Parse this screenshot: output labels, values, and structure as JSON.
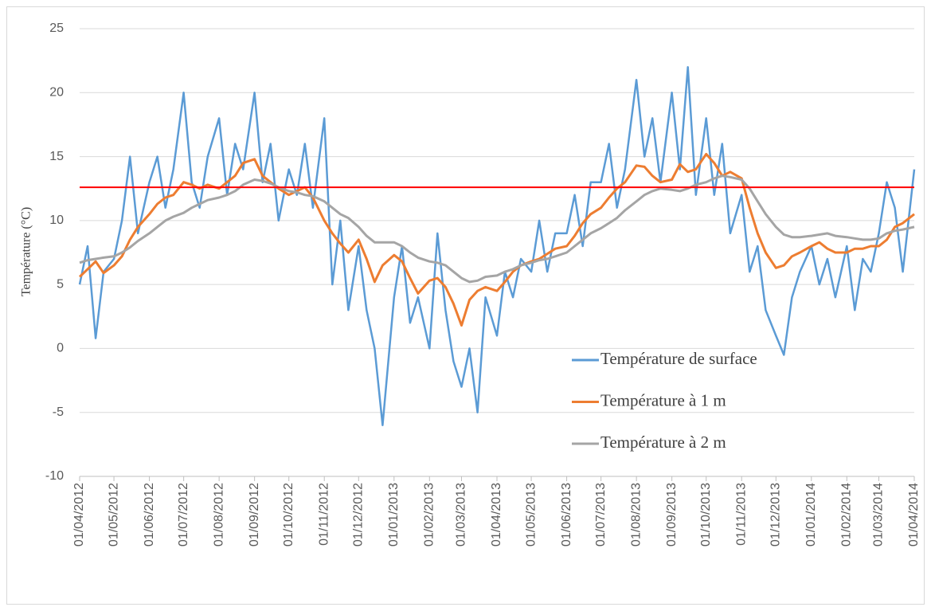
{
  "chart_data": {
    "type": "line",
    "ylabel": "Température (°C)",
    "x": [
      "01/04/2012",
      "08/04/2012",
      "15/04/2012",
      "22/04/2012",
      "01/05/2012",
      "08/05/2012",
      "15/05/2012",
      "22/05/2012",
      "01/06/2012",
      "08/06/2012",
      "15/06/2012",
      "22/06/2012",
      "01/07/2012",
      "08/07/2012",
      "15/07/2012",
      "22/07/2012",
      "01/08/2012",
      "08/08/2012",
      "15/08/2012",
      "22/08/2012",
      "01/09/2012",
      "08/09/2012",
      "15/09/2012",
      "22/09/2012",
      "01/10/2012",
      "08/10/2012",
      "15/10/2012",
      "22/10/2012",
      "01/11/2012",
      "08/11/2012",
      "15/11/2012",
      "22/11/2012",
      "01/12/2012",
      "08/12/2012",
      "15/12/2012",
      "22/12/2012",
      "01/01/2013",
      "08/01/2013",
      "15/01/2013",
      "22/01/2013",
      "01/02/2013",
      "08/02/2013",
      "15/02/2013",
      "22/02/2013",
      "01/03/2013",
      "08/03/2013",
      "15/03/2013",
      "22/03/2013",
      "01/04/2013",
      "08/04/2013",
      "15/04/2013",
      "22/04/2013",
      "01/05/2013",
      "08/05/2013",
      "15/05/2013",
      "22/05/2013",
      "01/06/2013",
      "08/06/2013",
      "15/06/2013",
      "22/06/2013",
      "01/07/2013",
      "08/07/2013",
      "15/07/2013",
      "22/07/2013",
      "01/08/2013",
      "08/08/2013",
      "15/08/2013",
      "22/08/2013",
      "01/09/2013",
      "08/09/2013",
      "15/09/2013",
      "22/09/2013",
      "01/10/2013",
      "08/10/2013",
      "15/10/2013",
      "22/10/2013",
      "01/11/2013",
      "08/11/2013",
      "15/11/2013",
      "22/11/2013",
      "01/12/2013",
      "08/12/2013",
      "15/12/2013",
      "22/12/2013",
      "01/01/2014",
      "08/01/2014",
      "15/01/2014",
      "22/01/2014",
      "01/02/2014",
      "08/02/2014",
      "15/02/2014",
      "22/02/2014",
      "01/03/2014",
      "08/03/2014",
      "15/03/2014",
      "22/03/2014",
      "01/04/2014"
    ],
    "series": [
      {
        "name": "Température de surface",
        "color": "#5b9bd5",
        "values": [
          5,
          8,
          0.8,
          6,
          7,
          10,
          15,
          9,
          13,
          15,
          11,
          14,
          20,
          13,
          11,
          15,
          18,
          12,
          16,
          14,
          20,
          13,
          16,
          10,
          14,
          12,
          16,
          11,
          18,
          5,
          10,
          3,
          8,
          3,
          0,
          -6,
          4,
          8,
          2,
          4,
          0,
          9,
          3,
          -1,
          -3,
          0,
          -5,
          4,
          1,
          6,
          4,
          7,
          6,
          10,
          6,
          9,
          9,
          12,
          8,
          13,
          13,
          16,
          11,
          14,
          21,
          15,
          18,
          13,
          20,
          14,
          22,
          12,
          18,
          12,
          16,
          9,
          12,
          6,
          8,
          3,
          1,
          -0.5,
          4,
          6,
          8,
          5,
          7,
          4,
          8,
          3,
          7,
          6,
          9,
          13,
          11,
          6,
          14
        ]
      },
      {
        "name": "Température à 1 m",
        "color": "#ed7d31",
        "values": [
          5.6,
          6.2,
          6.8,
          5.9,
          6.5,
          7.2,
          8.5,
          9.5,
          10.5,
          11.3,
          11.8,
          12,
          13,
          12.8,
          12.5,
          12.8,
          12.5,
          13,
          13.5,
          14.5,
          14.8,
          13.5,
          13,
          12.5,
          12,
          12.3,
          12.6,
          11.8,
          10,
          9,
          8.2,
          7.5,
          8.5,
          7,
          5.2,
          6.5,
          7.3,
          6.8,
          5.5,
          4.3,
          5.3,
          5.5,
          4.8,
          3.5,
          1.8,
          3.8,
          4.5,
          4.8,
          4.5,
          5.2,
          6,
          6.5,
          6.8,
          7,
          7.4,
          7.8,
          8,
          8.8,
          9.8,
          10.5,
          11,
          11.8,
          12.5,
          13,
          14.3,
          14.2,
          13.5,
          13,
          13.2,
          14.4,
          13.8,
          14,
          15.2,
          14.5,
          13.5,
          13.8,
          13.3,
          11,
          9,
          7.5,
          6.3,
          6.5,
          7.2,
          7.5,
          8,
          8.3,
          7.8,
          7.5,
          7.5,
          7.8,
          7.8,
          8,
          8,
          8.5,
          9.5,
          9.8,
          10.5
        ]
      },
      {
        "name": "Température à 2 m",
        "color": "#a5a5a5",
        "values": [
          6.7,
          6.9,
          7,
          7.1,
          7.2,
          7.5,
          7.9,
          8.4,
          9,
          9.5,
          10,
          10.3,
          10.6,
          11,
          11.3,
          11.6,
          11.8,
          12,
          12.3,
          12.8,
          13.2,
          13.1,
          12.9,
          12.6,
          12.3,
          12.2,
          12,
          11.9,
          11.5,
          11,
          10.5,
          10.2,
          9.5,
          8.8,
          8.3,
          8.3,
          8.3,
          8,
          7.5,
          7.1,
          6.8,
          6.7,
          6.5,
          6,
          5.5,
          5.2,
          5.3,
          5.6,
          5.7,
          6,
          6.2,
          6.5,
          6.7,
          6.9,
          7,
          7.2,
          7.5,
          8,
          8.5,
          9,
          9.4,
          9.8,
          10.2,
          10.8,
          11.5,
          12,
          12.3,
          12.5,
          12.4,
          12.3,
          12.5,
          12.8,
          13,
          13.3,
          13.5,
          13.4,
          13.2,
          12.5,
          11.5,
          10.5,
          9.5,
          8.9,
          8.7,
          8.7,
          8.8,
          8.9,
          9,
          8.8,
          8.7,
          8.6,
          8.5,
          8.5,
          8.6,
          9,
          9.2,
          9.3,
          9.5
        ]
      }
    ],
    "hlines": [
      {
        "value": 12.6,
        "color": "#ff0000"
      }
    ],
    "xlim": [
      "01/04/2012",
      "01/04/2014"
    ],
    "xticks": [
      "01/04/2012",
      "01/05/2012",
      "01/06/2012",
      "01/07/2012",
      "01/08/2012",
      "01/09/2012",
      "01/10/2012",
      "01/11/2012",
      "01/12/2012",
      "01/01/2013",
      "01/02/2013",
      "01/03/2013",
      "01/04/2013",
      "01/05/2013",
      "01/06/2013",
      "01/07/2013",
      "01/08/2013",
      "01/09/2013",
      "01/10/2013",
      "01/11/2013",
      "01/12/2013",
      "01/01/2014",
      "01/02/2014",
      "01/03/2014",
      "01/04/2014"
    ],
    "ylim": [
      -10,
      25
    ],
    "yticks": [
      -10,
      -5,
      0,
      5,
      10,
      15,
      20,
      25
    ],
    "grid": true,
    "legend": "right"
  }
}
